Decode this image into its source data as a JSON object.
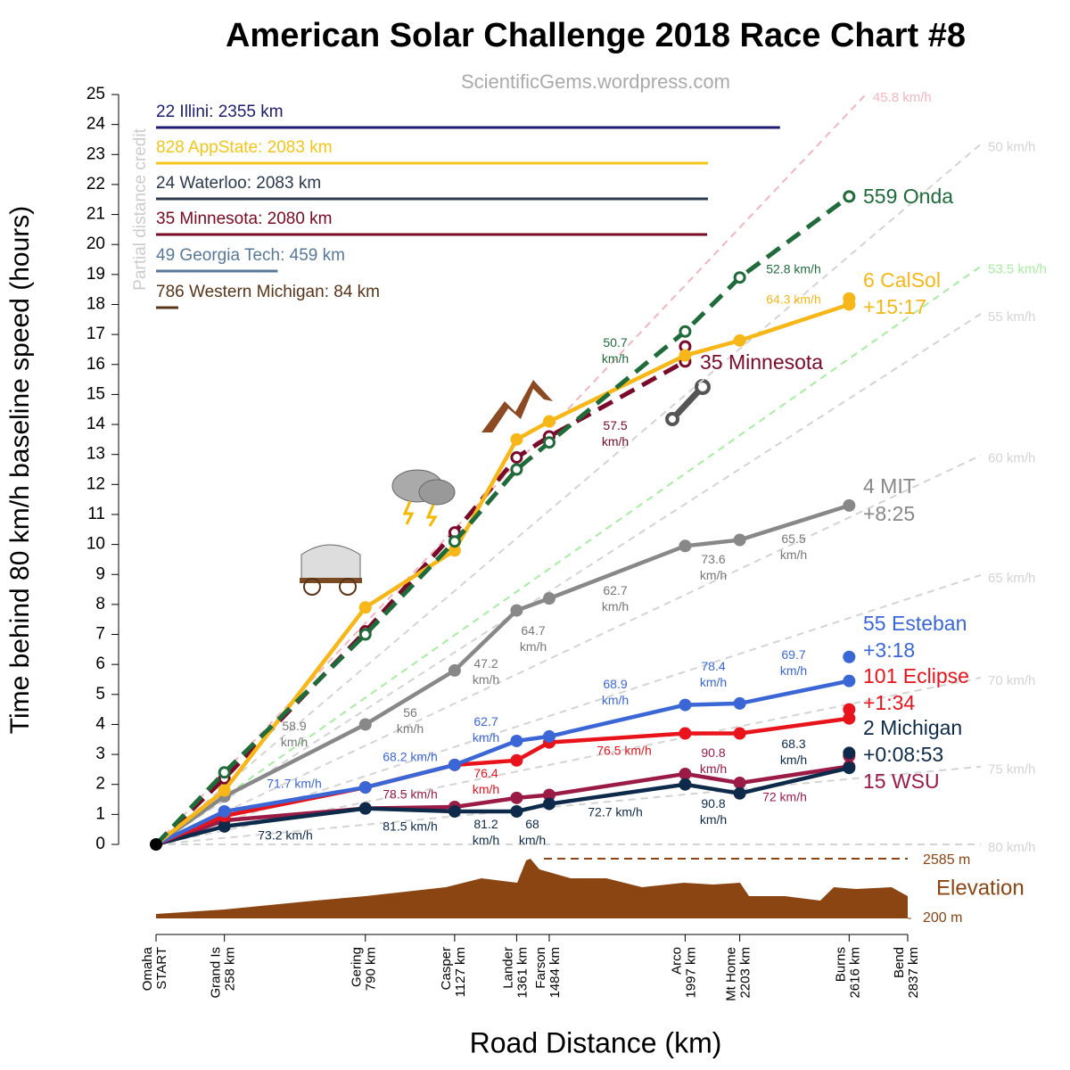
{
  "chart_data": {
    "type": "line",
    "title": "American Solar Challenge 2018 Race Chart #8",
    "subtitle": "ScientificGems.wordpress.com",
    "x_label": "Road Distance (km)",
    "y_label": "Time behind 80 km/h baseline speed (hours)",
    "credit_label": "Partial distance credit",
    "xlim": [
      0,
      2837
    ],
    "ylim": [
      0,
      25
    ],
    "yticks": [
      0,
      1,
      2,
      3,
      4,
      5,
      6,
      7,
      8,
      9,
      10,
      11,
      12,
      13,
      14,
      15,
      16,
      17,
      18,
      19,
      20,
      21,
      22,
      23,
      24,
      25
    ],
    "xticks": [
      {
        "value": 0,
        "label": [
          "Omaha",
          "START"
        ]
      },
      {
        "value": 258,
        "label": [
          "Grand Is",
          "258 km"
        ]
      },
      {
        "value": 790,
        "label": [
          "Gering",
          "790 km"
        ]
      },
      {
        "value": 1127,
        "label": [
          "Casper",
          "1127 km"
        ]
      },
      {
        "value": 1361,
        "label": [
          "Lander",
          "1361 km"
        ]
      },
      {
        "value": 1484,
        "label": [
          "Farson",
          "1484 km"
        ]
      },
      {
        "value": 1997,
        "label": [
          "Arco",
          "1997 km"
        ]
      },
      {
        "value": 2203,
        "label": [
          "Mt Home",
          "2203 km"
        ]
      },
      {
        "value": 2616,
        "label": [
          "Burns",
          "2616 km"
        ]
      },
      {
        "value": 2837,
        "label": [
          "Bend",
          "2837 km"
        ]
      }
    ],
    "x": [
      0,
      258,
      790,
      1127,
      1361,
      1484,
      1997,
      2203,
      2616
    ],
    "series": [
      {
        "name": "559 Onda",
        "color": "#1f6b3a",
        "dash": true,
        "marker": "open",
        "values": [
          0,
          2.4,
          7.0,
          10.1,
          12.5,
          13.4,
          17.1,
          18.9,
          21.6
        ],
        "speeds": [
          null,
          null,
          null,
          null,
          null,
          "50.7 km/h",
          null,
          "52.8 km/h"
        ]
      },
      {
        "name": "6 CalSol",
        "gap": "+15:17",
        "color": "#f8b718",
        "dash": false,
        "marker": "filled",
        "values": [
          0,
          1.8,
          7.9,
          9.8,
          13.5,
          14.1,
          16.3,
          16.8,
          18.0
        ],
        "final": 18.2,
        "speeds": [
          null,
          null,
          null,
          null,
          null,
          null,
          null,
          "64.3 km/h"
        ]
      },
      {
        "name": "35 Minnesota",
        "color": "#7a0a2a",
        "dash": true,
        "marker": "open",
        "values": [
          0,
          2.2,
          7.1,
          10.4,
          12.9,
          13.6,
          16.1,
          null,
          null
        ],
        "final": 16.6,
        "speeds": [
          null,
          null,
          null,
          null,
          null,
          "57.5 km/h",
          null,
          null
        ]
      },
      {
        "name": "4 MIT",
        "gap": "+8:25",
        "color": "#888888",
        "dash": false,
        "marker": "filled",
        "values": [
          0,
          1.6,
          4.0,
          5.8,
          7.8,
          8.2,
          9.95,
          10.15,
          11.3
        ],
        "speeds": [
          null,
          "58.9 km/h",
          "56 km/h",
          "47.2 km/h",
          "64.7 km/h",
          "62.7 km/h",
          "73.6 km/h",
          "65.5 km/h"
        ]
      },
      {
        "name": "55 Esteban",
        "gap": "+3:18",
        "color": "#3a66d6",
        "dash": false,
        "marker": "filled",
        "values": [
          0,
          1.1,
          1.9,
          2.65,
          3.45,
          3.6,
          4.65,
          4.7,
          5.45
        ],
        "final": 6.25,
        "speeds": [
          null,
          "71.7 km/h",
          "68.2 km/h",
          "62.7 km/h",
          null,
          "68.9 km/h",
          "78.4 km/h",
          "69.7 km/h"
        ]
      },
      {
        "name": "101 Eclipse",
        "gap": "+1:34",
        "color": "#e8131b",
        "dash": false,
        "marker": "filled",
        "values": [
          0,
          0.95,
          1.9,
          2.65,
          2.8,
          3.4,
          3.7,
          3.7,
          4.2
        ],
        "final": 4.5,
        "speeds": [
          null,
          null,
          null,
          "76.4 km/h",
          null,
          "76.5 km/h",
          null,
          null
        ]
      },
      {
        "name": "2 Michigan",
        "gap": "+0:08:53",
        "color": "#0e2a4a",
        "dash": false,
        "marker": "filled",
        "values": [
          0,
          0.6,
          1.2,
          1.1,
          1.1,
          1.35,
          2.0,
          1.7,
          2.55
        ],
        "final": 3.05,
        "speeds": [
          null,
          "73.2 km/h",
          "81.5 km/h",
          "81.2 km/h",
          "68 km/h",
          "72.7 km/h",
          "90.8 km/h",
          "68.3 km/h"
        ]
      },
      {
        "name": "15 WSU",
        "color": "#9a1b46",
        "dash": false,
        "marker": "filled",
        "values": [
          0,
          0.8,
          1.2,
          1.25,
          1.55,
          1.65,
          2.35,
          2.05,
          2.6
        ],
        "final": 2.95,
        "speeds": [
          null,
          null,
          "78.5 km/h",
          null,
          null,
          null,
          "90.8 km/h",
          "72 km/h"
        ]
      }
    ],
    "baselines": [
      {
        "value": 45.8,
        "label": "45.8 km/h",
        "color": "#f4b6be"
      },
      {
        "value": 50,
        "label": "50 km/h",
        "color": "#d4d4d4"
      },
      {
        "value": 53.5,
        "label": "53.5 km/h",
        "color": "#a6eea0"
      },
      {
        "value": 55,
        "label": "55 km/h",
        "color": "#d4d4d4"
      },
      {
        "value": 60,
        "label": "60 km/h",
        "color": "#d4d4d4"
      },
      {
        "value": 65,
        "label": "65 km/h",
        "color": "#d4d4d4"
      },
      {
        "value": 70,
        "label": "70 km/h",
        "color": "#d4d4d4"
      },
      {
        "value": 75,
        "label": "75 km/h",
        "color": "#d4d4d4"
      },
      {
        "value": 80,
        "label": "80 km/h",
        "color": "#d4d4d4"
      }
    ],
    "distance_credit": [
      {
        "label": "22 Illini: 2355 km",
        "value": 2355,
        "color": "#1c1c72"
      },
      {
        "label": "828 AppState: 2083 km",
        "value": 2083,
        "color": "#f5c518"
      },
      {
        "label": "24 Waterloo: 2083 km",
        "value": 2083,
        "color": "#2c3a4e"
      },
      {
        "label": "35 Minnesota: 2080 km",
        "value": 2080,
        "color": "#7a0a22"
      },
      {
        "label": "49 Georgia Tech: 459 km",
        "value": 459,
        "color": "#58789a"
      },
      {
        "label": "786 Western Michigan: 84 km",
        "value": 84,
        "color": "#5a3418"
      }
    ],
    "elevation": {
      "label": "Elevation",
      "color": "#8b4513",
      "ticks": [
        {
          "value": 200,
          "label": "200 m"
        },
        {
          "value": 2585,
          "label": "2585 m"
        }
      ],
      "km": [
        0,
        258,
        600,
        791,
        1094,
        1228,
        1363,
        1397,
        1413,
        1447,
        1565,
        1700,
        1767,
        1834,
        1992,
        2103,
        2204,
        2238,
        2373,
        2507,
        2558,
        2642,
        2776,
        2837
      ],
      "m": [
        378,
        556,
        912,
        1090,
        1446,
        1802,
        1624,
        2514,
        2585,
        2158,
        1802,
        1802,
        1624,
        1446,
        1624,
        1553,
        1624,
        1090,
        1090,
        912,
        1446,
        1375,
        1446,
        1090
      ]
    }
  }
}
